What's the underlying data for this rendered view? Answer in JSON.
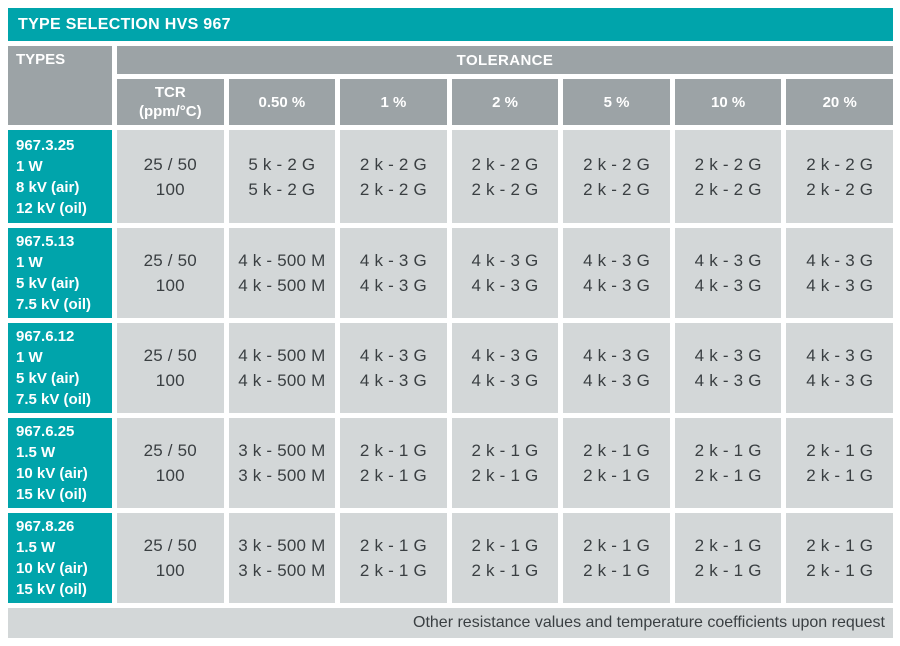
{
  "title": "TYPE SELECTION HVS 967",
  "colors": {
    "accent_teal": "#00a4ab",
    "header_gray": "#9ca3a6",
    "cell_gray": "#d3d7d8",
    "text_dark": "#3a3f42",
    "text_light": "#ffffff"
  },
  "header": {
    "types_label": "TYPES",
    "tolerance_label": "TOLERANCE",
    "columns": [
      {
        "lines": [
          "TCR",
          "(ppm/°C)"
        ]
      },
      {
        "lines": [
          "0.50 %"
        ]
      },
      {
        "lines": [
          "1 %"
        ]
      },
      {
        "lines": [
          "2 %"
        ]
      },
      {
        "lines": [
          "5 %"
        ]
      },
      {
        "lines": [
          "10 %"
        ]
      },
      {
        "lines": [
          "20 %"
        ]
      }
    ]
  },
  "rows": [
    {
      "type_lines": [
        "967.3.25",
        "1 W",
        "8 kV (air)",
        "12 kV (oil)"
      ],
      "cells": [
        [
          "25 / 50",
          "100"
        ],
        [
          "5 k - 2 G",
          "5 k - 2 G"
        ],
        [
          "2 k - 2 G",
          "2 k - 2 G"
        ],
        [
          "2 k - 2 G",
          "2 k - 2 G"
        ],
        [
          "2 k - 2 G",
          "2 k - 2 G"
        ],
        [
          "2 k - 2 G",
          "2 k - 2 G"
        ],
        [
          "2 k - 2 G",
          "2 k - 2 G"
        ]
      ]
    },
    {
      "type_lines": [
        "967.5.13",
        "1 W",
        "5 kV (air)",
        "7.5 kV (oil)"
      ],
      "cells": [
        [
          "25 / 50",
          "100"
        ],
        [
          "4 k - 500 M",
          "4 k - 500 M"
        ],
        [
          "4 k - 3 G",
          "4 k - 3 G"
        ],
        [
          "4 k - 3 G",
          "4 k - 3 G"
        ],
        [
          "4 k - 3 G",
          "4 k - 3 G"
        ],
        [
          "4 k - 3 G",
          "4 k - 3 G"
        ],
        [
          "4 k - 3 G",
          "4 k - 3 G"
        ]
      ]
    },
    {
      "type_lines": [
        "967.6.12",
        "1 W",
        "5 kV (air)",
        "7.5 kV (oil)"
      ],
      "cells": [
        [
          "25 / 50",
          "100"
        ],
        [
          "4 k - 500 M",
          "4 k - 500 M"
        ],
        [
          "4 k - 3 G",
          "4 k - 3 G"
        ],
        [
          "4 k - 3 G",
          "4 k - 3 G"
        ],
        [
          "4 k - 3 G",
          "4 k - 3 G"
        ],
        [
          "4 k - 3 G",
          "4 k - 3 G"
        ],
        [
          "4 k - 3 G",
          "4 k - 3 G"
        ]
      ]
    },
    {
      "type_lines": [
        "967.6.25",
        "1.5 W",
        "10 kV (air)",
        "15 kV (oil)"
      ],
      "cells": [
        [
          "25 / 50",
          "100"
        ],
        [
          "3 k - 500 M",
          "3 k - 500 M"
        ],
        [
          "2 k - 1 G",
          "2 k - 1 G"
        ],
        [
          "2 k - 1 G",
          "2 k - 1 G"
        ],
        [
          "2 k - 1 G",
          "2 k - 1 G"
        ],
        [
          "2 k - 1 G",
          "2 k - 1 G"
        ],
        [
          "2 k - 1 G",
          "2 k - 1 G"
        ]
      ]
    },
    {
      "type_lines": [
        "967.8.26",
        "1.5 W",
        "10 kV (air)",
        "15 kV (oil)"
      ],
      "cells": [
        [
          "25 / 50",
          "100"
        ],
        [
          "3 k - 500 M",
          "3 k - 500 M"
        ],
        [
          "2 k - 1 G",
          "2 k - 1 G"
        ],
        [
          "2 k - 1 G",
          "2 k - 1 G"
        ],
        [
          "2 k - 1 G",
          "2 k - 1 G"
        ],
        [
          "2 k - 1 G",
          "2 k - 1 G"
        ],
        [
          "2 k - 1 G",
          "2 k - 1 G"
        ]
      ]
    }
  ],
  "footer": "Other resistance values and temperature coefficients upon request"
}
